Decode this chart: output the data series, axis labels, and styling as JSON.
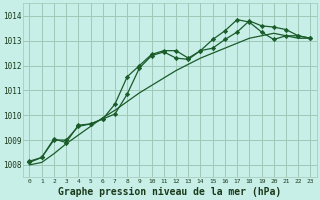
{
  "bg_color": "#c8eee8",
  "grid_color": "#a0c8b8",
  "line_color": "#1a5c2a",
  "xlabel": "Graphe pression niveau de la mer (hPa)",
  "xlabel_fontsize": 7,
  "xlim": [
    -0.5,
    23.5
  ],
  "ylim": [
    1007.5,
    1014.5
  ],
  "yticks": [
    1008,
    1009,
    1010,
    1011,
    1012,
    1013,
    1014
  ],
  "xticks": [
    0,
    1,
    2,
    3,
    4,
    5,
    6,
    7,
    8,
    9,
    10,
    11,
    12,
    13,
    14,
    15,
    16,
    17,
    18,
    19,
    20,
    21,
    22,
    23
  ],
  "line1_x": [
    0,
    1,
    2,
    3,
    4,
    5,
    6,
    7,
    8,
    9,
    10,
    11,
    12,
    13,
    14,
    15,
    16,
    17,
    18,
    19,
    20,
    21,
    22,
    23
  ],
  "line1_y": [
    1008.15,
    1008.3,
    1009.0,
    1009.0,
    1009.55,
    1009.65,
    1009.85,
    1010.45,
    1011.55,
    1012.0,
    1012.45,
    1012.6,
    1012.6,
    1012.3,
    1012.6,
    1012.7,
    1013.05,
    1013.35,
    1013.8,
    1013.6,
    1013.55,
    1013.45,
    1013.2,
    1013.1
  ],
  "line2_x": [
    0,
    1,
    2,
    3,
    4,
    5,
    6,
    7,
    8,
    9,
    10,
    11,
    12,
    13,
    14,
    15,
    16,
    17,
    18,
    19,
    20,
    21,
    22,
    23
  ],
  "line2_y": [
    1008.1,
    1008.3,
    1009.05,
    1008.9,
    1009.6,
    1009.65,
    1009.85,
    1010.05,
    1010.85,
    1011.9,
    1012.4,
    1012.55,
    1012.3,
    1012.25,
    1012.6,
    1013.05,
    1013.4,
    1013.85,
    1013.75,
    1013.35,
    1013.05,
    1013.2,
    1013.2,
    1013.1
  ],
  "line3_x": [
    0,
    1,
    2,
    3,
    4,
    5,
    6,
    7,
    8,
    9,
    10,
    11,
    12,
    13,
    14,
    15,
    16,
    17,
    18,
    19,
    20,
    21,
    22,
    23
  ],
  "line3_y": [
    1008.0,
    1008.1,
    1008.45,
    1008.85,
    1009.2,
    1009.55,
    1009.9,
    1010.2,
    1010.55,
    1010.9,
    1011.2,
    1011.5,
    1011.8,
    1012.05,
    1012.3,
    1012.5,
    1012.7,
    1012.9,
    1013.1,
    1013.2,
    1013.3,
    1013.2,
    1013.1,
    1013.1
  ]
}
